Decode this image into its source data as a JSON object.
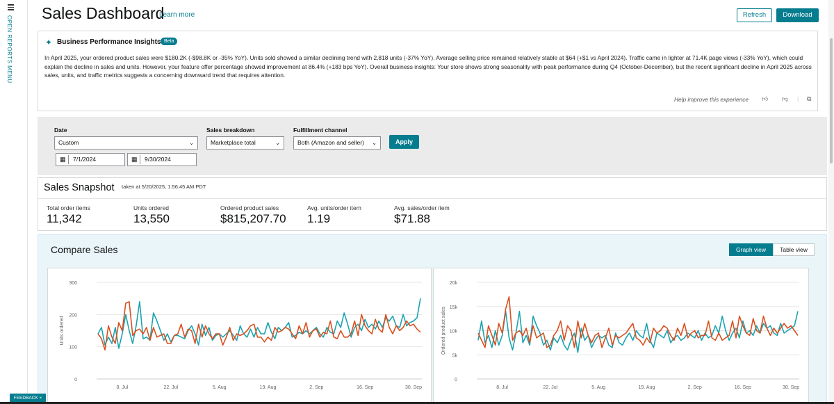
{
  "rail": {
    "menu_label": "OPEN REPORTS MENU"
  },
  "header": {
    "title": "Sales Dashboard",
    "learn_more": "Learn more",
    "refresh_label": "Refresh",
    "download_label": "Download"
  },
  "insights": {
    "title": "Business Performance Insights",
    "badge": "Beta",
    "body": "In April 2025, your ordered product sales were $180.2K (-$98.8K or -35% YoY). Units sold showed a similar declining trend with 2,818 units (-37% YoY). Average selling price remained relatively stable at $64 (+$1 vs April 2024). Traffic came in lighter at 71.4K page views (-33% YoY), which could explain the decline in sales and units. However, your feature offer percentage showed improvement at 86.4% (+183 bps YoY). Overall business insights: Your store shows strong seasonality with peak performance during Q4 (October-December), but the recent significant decline in April 2025 across sales, units, and traffic metrics suggests a concerning downward trend that requires attention.",
    "help_text": "Help improve this experience"
  },
  "filters": {
    "date_label": "Date",
    "date_value": "Custom",
    "start_date": "7/1/2024",
    "end_date": "9/30/2024",
    "breakdown_label": "Sales breakdown",
    "breakdown_value": "Marketplace total",
    "fulfillment_label": "Fulfillment channel",
    "fulfillment_value": "Both (Amazon and seller)",
    "apply_label": "Apply"
  },
  "snapshot": {
    "title": "Sales Snapshot",
    "taken": "taken at 5/20/2025, 1:56:45 AM PDT",
    "metrics": [
      {
        "label": "Total order items",
        "value": "11,342"
      },
      {
        "label": "Units ordered",
        "value": "13,550"
      },
      {
        "label": "Ordered product sales",
        "value": "$815,207.70"
      },
      {
        "label": "Avg. units/order item",
        "value": "1.19"
      },
      {
        "label": "Avg. sales/order item",
        "value": "$71.88"
      }
    ]
  },
  "compare": {
    "title": "Compare Sales",
    "graph_view": "Graph view",
    "table_view": "Table view"
  },
  "feedback_label": "FEEDBACK ×",
  "colors": {
    "accent": "#067d8f",
    "series_teal": "#1ba3b0",
    "series_orange": "#d9501e"
  },
  "chart_data": [
    {
      "type": "line",
      "ylabel": "Units ordered",
      "ylim": [
        0,
        300
      ],
      "yticks": [
        "0",
        "100",
        "200",
        "300"
      ],
      "xticks": [
        "8. Jul",
        "22. Jul",
        "5. Aug",
        "19. Aug",
        "2. Sep",
        "16. Sep",
        "30. Sep"
      ],
      "series": [
        {
          "values": [
            140,
            160,
            105,
            130,
            110,
            160,
            95,
            140,
            200,
            150,
            110,
            165,
            240,
            125,
            130,
            120,
            205,
            180,
            150,
            120,
            140,
            115,
            135,
            135,
            130,
            125,
            150,
            165,
            140,
            105,
            170,
            135,
            160,
            120,
            135,
            140,
            130,
            140,
            150,
            135,
            120,
            165,
            140,
            130,
            155,
            130,
            160,
            140,
            140,
            175,
            145,
            125,
            160,
            150,
            160,
            175,
            130,
            135,
            145,
            140,
            150,
            140,
            150,
            160,
            140,
            130,
            160,
            145,
            140,
            180,
            160,
            205,
            170,
            130,
            160,
            170,
            150,
            185,
            160,
            170,
            155,
            180,
            160,
            190,
            180,
            195,
            165,
            160,
            200,
            165,
            175,
            180,
            190,
            250
          ]
        },
        {
          "values": [
            140,
            125,
            90,
            165,
            130,
            110,
            175,
            150,
            235,
            240,
            135,
            150,
            155,
            140,
            160,
            120,
            160,
            130,
            135,
            140,
            110,
            110,
            135,
            140,
            170,
            130,
            155,
            150,
            110,
            170,
            130,
            165,
            140,
            125,
            140,
            140,
            105,
            130,
            160,
            120,
            140,
            135,
            140,
            150,
            165,
            170,
            130,
            130,
            115,
            130,
            120,
            160,
            145,
            150,
            160,
            155,
            140,
            125,
            165,
            140,
            175,
            130,
            150,
            155,
            130,
            145,
            140,
            180,
            130,
            125,
            150,
            130,
            130,
            140,
            180,
            135,
            200,
            165,
            150,
            140,
            185,
            155,
            145,
            200,
            160,
            140,
            165,
            150,
            160,
            180,
            165,
            170,
            155,
            145
          ]
        }
      ]
    },
    {
      "type": "line",
      "ylabel": "Ordered product sales",
      "ylim": [
        0,
        20000
      ],
      "yticks": [
        "0",
        "5k",
        "10k",
        "15k",
        "20k"
      ],
      "xticks": [
        "8. Jul",
        "22. Jul",
        "5. Aug",
        "19. Aug",
        "2. Sep",
        "16. Sep",
        "30. Sep"
      ],
      "series": [
        {
          "values": [
            8000,
            12000,
            7500,
            9000,
            6500,
            10000,
            7000,
            9000,
            14000,
            8500,
            6000,
            9500,
            14000,
            7500,
            9000,
            7000,
            13000,
            11000,
            9500,
            7000,
            8000,
            6000,
            8500,
            7500,
            9000,
            7000,
            6000,
            8000,
            9500,
            5500,
            10500,
            8000,
            9000,
            6500,
            8000,
            9000,
            8500,
            9000,
            7000,
            6500,
            9500,
            7500,
            7000,
            8500,
            9500,
            8000,
            10000,
            9000,
            8500,
            11500,
            8000,
            6500,
            9500,
            9000,
            8500,
            10000,
            7500,
            8500,
            9000,
            8000,
            8500,
            9500,
            9000,
            8500,
            10000,
            8000,
            9500,
            8500,
            9000,
            11000,
            9500,
            13000,
            10000,
            8000,
            9500,
            10500,
            8500,
            12000,
            9500,
            10000,
            9000,
            11000,
            9500,
            11500,
            10500,
            11000,
            9500,
            9000,
            11500,
            9500,
            10000,
            10500,
            11000,
            14000
          ]
        },
        {
          "values": [
            9500,
            8000,
            6500,
            11000,
            9000,
            7000,
            11500,
            9500,
            14500,
            17000,
            8000,
            9500,
            10000,
            9000,
            10500,
            7500,
            11000,
            8500,
            9000,
            9500,
            6500,
            7000,
            9000,
            10000,
            12000,
            8000,
            11000,
            10000,
            6500,
            12000,
            8500,
            11500,
            9000,
            7500,
            9000,
            9500,
            6500,
            8500,
            10500,
            7000,
            9000,
            8500,
            9000,
            9500,
            10500,
            11500,
            8500,
            8000,
            7000,
            8500,
            7500,
            10500,
            9500,
            10000,
            11000,
            10500,
            9000,
            8000,
            10500,
            9000,
            11500,
            8500,
            9500,
            10000,
            8500,
            9000,
            9000,
            12000,
            8500,
            8000,
            9500,
            8000,
            8500,
            9000,
            12000,
            8500,
            13000,
            11000,
            9500,
            9000,
            12500,
            10000,
            9500,
            13000,
            10500,
            9000,
            10500,
            9500,
            10500,
            11500,
            10500,
            11000,
            10000,
            9000
          ]
        }
      ]
    }
  ]
}
